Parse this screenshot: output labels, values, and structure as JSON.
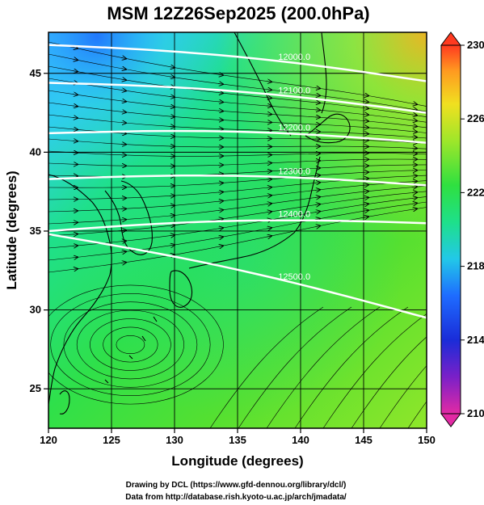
{
  "title": "MSM 12Z26Sep2025 (200.0hPa)",
  "x_axis": {
    "label": "Longitude (degrees)",
    "ticks": [
      "120",
      "125",
      "130",
      "135",
      "140",
      "145",
      "150"
    ],
    "range": [
      120,
      150
    ]
  },
  "y_axis": {
    "label": "Latitude  (degrees)",
    "ticks": [
      "25",
      "30",
      "35",
      "40",
      "45"
    ],
    "range": [
      22.5,
      47.6
    ]
  },
  "colorbar": {
    "ticks": [
      "210",
      "214",
      "218",
      "222",
      "226",
      "230"
    ],
    "range": [
      210,
      230
    ]
  },
  "contours": [
    {
      "label": "12000.0",
      "lat_west": 46.8,
      "lat_east": 44.5
    },
    {
      "label": "12100.0",
      "lat_west": 44.4,
      "lat_east": 42.5
    },
    {
      "label": "12200.0",
      "lat_west": 41.2,
      "lat_east": 40.6
    },
    {
      "label": "12300.0",
      "lat_west": 38.3,
      "lat_east": 37.9
    },
    {
      "label": "12400.0",
      "lat_west": 35.0,
      "lat_east": 35.5
    },
    {
      "label": "12500.0",
      "lat_west": 34.8,
      "lat_east": 29.5
    }
  ],
  "credits": [
    "Drawing by DCL (https://www.gfd-dennou.org/library/dcl/)",
    "Data from http://database.rish.kyoto-u.ac.jp/arch/jmadata/"
  ],
  "colors": {
    "frame": "#000000",
    "contour": "#ffffff",
    "background": "#ffffff"
  }
}
